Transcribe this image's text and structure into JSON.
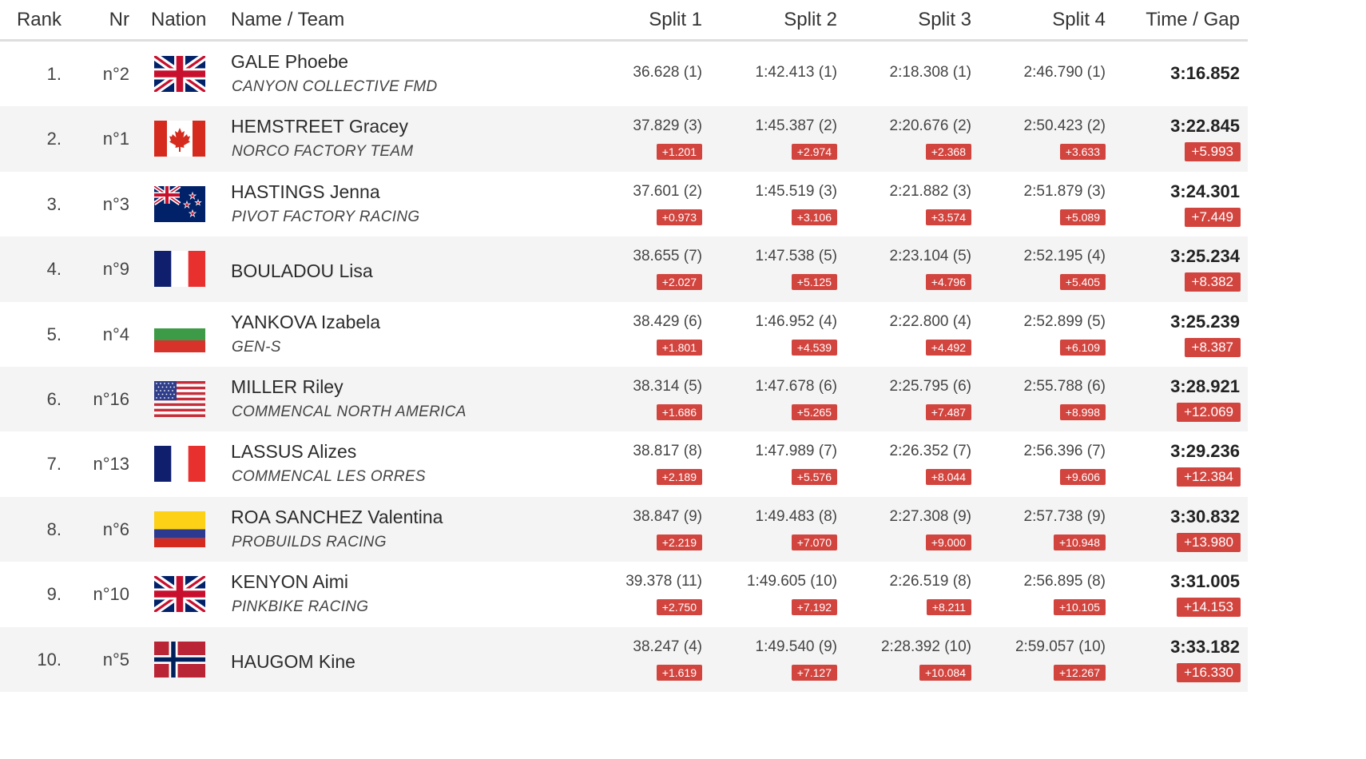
{
  "header": {
    "rank": "Rank",
    "nr": "Nr",
    "nation": "Nation",
    "name_team": "Name / Team",
    "split1": "Split 1",
    "split2": "Split 2",
    "split3": "Split 3",
    "split4": "Split 4",
    "time_gap": "Time / Gap"
  },
  "colors": {
    "gap_badge": "#d2453f",
    "stripe": "#f4f4f4",
    "header_rule": "#dedede"
  },
  "rows": [
    {
      "rank": "1.",
      "nr": "n°2",
      "flag": "gb-flag-icon",
      "name": "GALE Phoebe",
      "team": "CANYON COLLECTIVE FMD",
      "s1": "36.628 (1)",
      "s2": "1:42.413 (1)",
      "s3": "2:18.308 (1)",
      "s4": "2:46.790 (1)",
      "time": "3:16.852"
    },
    {
      "rank": "2.",
      "nr": "n°1",
      "flag": "ca-flag-icon",
      "name": "HEMSTREET Gracey",
      "team": "NORCO FACTORY TEAM",
      "s1": "37.829 (3)",
      "g1": "+1.201",
      "s2": "1:45.387 (2)",
      "g2": "+2.974",
      "s3": "2:20.676 (2)",
      "g3": "+2.368",
      "s4": "2:50.423 (2)",
      "g4": "+3.633",
      "time": "3:22.845",
      "gap": "+5.993"
    },
    {
      "rank": "3.",
      "nr": "n°3",
      "flag": "nz-flag-icon",
      "name": "HASTINGS Jenna",
      "team": "PIVOT FACTORY RACING",
      "s1": "37.601 (2)",
      "g1": "+0.973",
      "s2": "1:45.519 (3)",
      "g2": "+3.106",
      "s3": "2:21.882 (3)",
      "g3": "+3.574",
      "s4": "2:51.879 (3)",
      "g4": "+5.089",
      "time": "3:24.301",
      "gap": "+7.449"
    },
    {
      "rank": "4.",
      "nr": "n°9",
      "flag": "fr-flag-icon",
      "name": "BOULADOU Lisa",
      "team": "",
      "s1": "38.655 (7)",
      "g1": "+2.027",
      "s2": "1:47.538 (5)",
      "g2": "+5.125",
      "s3": "2:23.104 (5)",
      "g3": "+4.796",
      "s4": "2:52.195 (4)",
      "g4": "+5.405",
      "time": "3:25.234",
      "gap": "+8.382"
    },
    {
      "rank": "5.",
      "nr": "n°4",
      "flag": "bg-flag-icon",
      "name": "YANKOVA Izabela",
      "team": "GEN-S",
      "s1": "38.429 (6)",
      "g1": "+1.801",
      "s2": "1:46.952 (4)",
      "g2": "+4.539",
      "s3": "2:22.800 (4)",
      "g3": "+4.492",
      "s4": "2:52.899 (5)",
      "g4": "+6.109",
      "time": "3:25.239",
      "gap": "+8.387"
    },
    {
      "rank": "6.",
      "nr": "n°16",
      "flag": "us-flag-icon",
      "name": "MILLER Riley",
      "team": "COMMENCAL NORTH AMERICA",
      "s1": "38.314 (5)",
      "g1": "+1.686",
      "s2": "1:47.678 (6)",
      "g2": "+5.265",
      "s3": "2:25.795 (6)",
      "g3": "+7.487",
      "s4": "2:55.788 (6)",
      "g4": "+8.998",
      "time": "3:28.921",
      "gap": "+12.069"
    },
    {
      "rank": "7.",
      "nr": "n°13",
      "flag": "fr-flag-icon",
      "name": "LASSUS Alizes",
      "team": "COMMENCAL LES ORRES",
      "s1": "38.817 (8)",
      "g1": "+2.189",
      "s2": "1:47.989 (7)",
      "g2": "+5.576",
      "s3": "2:26.352 (7)",
      "g3": "+8.044",
      "s4": "2:56.396 (7)",
      "g4": "+9.606",
      "time": "3:29.236",
      "gap": "+12.384"
    },
    {
      "rank": "8.",
      "nr": "n°6",
      "flag": "co-flag-icon",
      "name": "ROA SANCHEZ Valentina",
      "team": "PROBUILDS RACING",
      "s1": "38.847 (9)",
      "g1": "+2.219",
      "s2": "1:49.483 (8)",
      "g2": "+7.070",
      "s3": "2:27.308 (9)",
      "g3": "+9.000",
      "s4": "2:57.738 (9)",
      "g4": "+10.948",
      "time": "3:30.832",
      "gap": "+13.980"
    },
    {
      "rank": "9.",
      "nr": "n°10",
      "flag": "gb-flag-icon",
      "name": "KENYON Aimi",
      "team": "PINKBIKE RACING",
      "s1": "39.378 (11)",
      "g1": "+2.750",
      "s2": "1:49.605 (10)",
      "g2": "+7.192",
      "s3": "2:26.519 (8)",
      "g3": "+8.211",
      "s4": "2:56.895 (8)",
      "g4": "+10.105",
      "time": "3:31.005",
      "gap": "+14.153"
    },
    {
      "rank": "10.",
      "nr": "n°5",
      "flag": "no-flag-icon",
      "name": "HAUGOM Kine",
      "team": "",
      "s1": "38.247 (4)",
      "g1": "+1.619",
      "s2": "1:49.540 (9)",
      "g2": "+7.127",
      "s3": "2:28.392 (10)",
      "g3": "+10.084",
      "s4": "2:59.057 (10)",
      "g4": "+12.267",
      "time": "3:33.182",
      "gap": "+16.330"
    }
  ]
}
